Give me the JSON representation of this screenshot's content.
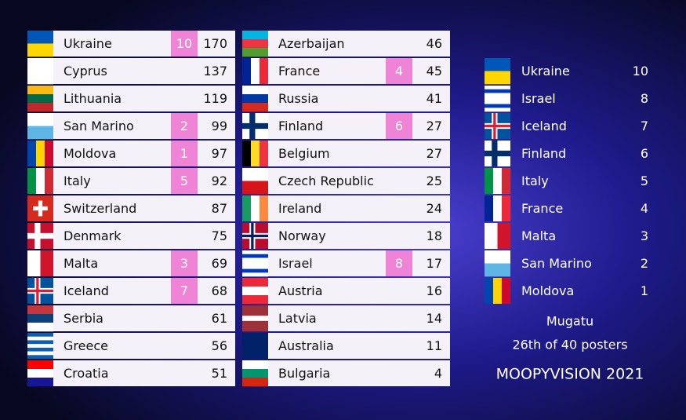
{
  "scoreboard": [
    {
      "country": "Ukraine",
      "points": 10,
      "total": 170
    },
    {
      "country": "Cyprus",
      "total": 137
    },
    {
      "country": "Lithuania",
      "total": 119
    },
    {
      "country": "San Marino",
      "points": 2,
      "total": 99
    },
    {
      "country": "Moldova",
      "points": 1,
      "total": 97
    },
    {
      "country": "Italy",
      "points": 5,
      "total": 92
    },
    {
      "country": "Switzerland",
      "total": 87
    },
    {
      "country": "Denmark",
      "total": 75
    },
    {
      "country": "Malta",
      "points": 3,
      "total": 69
    },
    {
      "country": "Iceland",
      "points": 7,
      "total": 68
    },
    {
      "country": "Serbia",
      "total": 61
    },
    {
      "country": "Greece",
      "total": 56
    },
    {
      "country": "Croatia",
      "total": 51
    },
    {
      "country": "Azerbaijan",
      "total": 46
    },
    {
      "country": "France",
      "points": 4,
      "total": 45
    },
    {
      "country": "Russia",
      "total": 41
    },
    {
      "country": "Finland",
      "points": 6,
      "total": 27
    },
    {
      "country": "Belgium",
      "total": 27
    },
    {
      "country": "Czech Republic",
      "total": 25
    },
    {
      "country": "Ireland",
      "total": 24
    },
    {
      "country": "Norway",
      "total": 18
    },
    {
      "country": "Israel",
      "points": 8,
      "total": 17
    },
    {
      "country": "Austria",
      "total": 16
    },
    {
      "country": "Latvia",
      "total": 14
    },
    {
      "country": "Australia",
      "total": 11
    },
    {
      "country": "Bulgaria",
      "total": 4
    }
  ],
  "votes": [
    {
      "country": "Ukraine",
      "points": 10
    },
    {
      "country": "Israel",
      "points": 8
    },
    {
      "country": "Iceland",
      "points": 7
    },
    {
      "country": "Finland",
      "points": 6
    },
    {
      "country": "Italy",
      "points": 5
    },
    {
      "country": "France",
      "points": 4
    },
    {
      "country": "Malta",
      "points": 3
    },
    {
      "country": "San Marino",
      "points": 2
    },
    {
      "country": "Moldova",
      "points": 1
    }
  ],
  "footer": {
    "name": "Mugatu",
    "rank": "26th of 40 posters",
    "brand": "MOOPYVISION 2021"
  }
}
